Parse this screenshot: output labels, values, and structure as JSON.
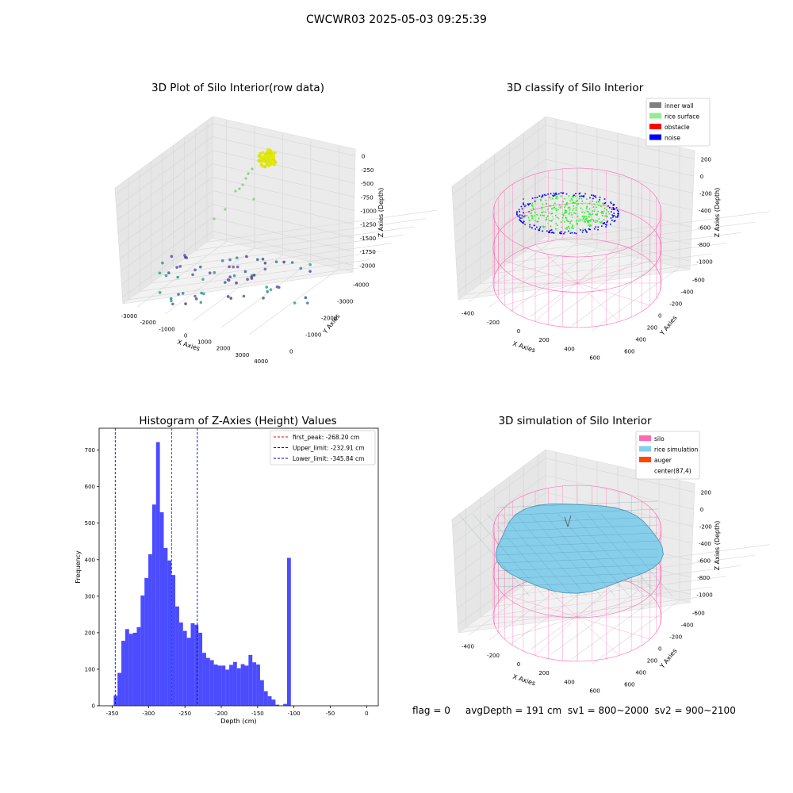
{
  "suptitle": "CWCWR03 2025-05-03 09:25:39",
  "status_text": "flag = 0     avgDepth = 191 cm  sv1 = 800~2000  sv2 = 900~2100",
  "colors": {
    "hist_bar": "#0000ff",
    "first_peak": "#ff0000",
    "limits": "#0000cc",
    "inner_wall": "#808080",
    "rice_surface": "#90ee90",
    "obstacle": "#ff0000",
    "noise": "#0000ff",
    "silo": "#ff69b4",
    "rice_simulation": "#87ceeb",
    "auger": "#ff4500"
  },
  "chart_data": [
    {
      "type": "scatter",
      "projection": "3d",
      "title": "3D Plot of Silo Interior(row data)",
      "xlabel": "X Axies",
      "ylabel": "Y Axies",
      "zlabel": "Z Axies (Depth)",
      "x_ticks": [
        "-3000",
        "-2000",
        "-1000",
        "0",
        "1000",
        "2000",
        "3000",
        "4000"
      ],
      "y_ticks": [
        "-4000",
        "-3000",
        "-2000",
        "-1000",
        "0"
      ],
      "z_ticks": [
        "0",
        "-250",
        "-500",
        "-750",
        "-1000",
        "-1250",
        "-1500",
        "-1750",
        "-2000"
      ],
      "grid": true
    },
    {
      "type": "scatter",
      "projection": "3d",
      "title": "3D classify of Silo Interior",
      "xlabel": "X Axies",
      "ylabel": "Y Axies",
      "zlabel": "Z Axies (Depth)",
      "x_ticks": [
        "-400",
        "-200",
        "0",
        "200",
        "400",
        "600"
      ],
      "y_ticks": [
        "-600",
        "-400",
        "-200",
        "0",
        "200",
        "400",
        "600"
      ],
      "z_ticks": [
        "200",
        "0",
        "-200",
        "-400",
        "-600",
        "-800",
        "-1000"
      ],
      "legend": [
        "inner wall",
        "rice surface",
        "obstacle",
        "noise"
      ],
      "legend_loc": "upper right",
      "grid": true
    },
    {
      "type": "bar",
      "title": "Histogram of Z-Axies (Height) Values",
      "xlabel": "Depth (cm)",
      "ylabel": "Frequency",
      "xlim": [
        -368,
        16
      ],
      "ylim": [
        0,
        760
      ],
      "x_ticks": [
        -350,
        -300,
        -250,
        -200,
        -150,
        -100,
        -50,
        0
      ],
      "y_ticks": [
        0,
        100,
        200,
        300,
        400,
        500,
        600,
        700
      ],
      "bin_start": -348,
      "bin_width": 5.3,
      "values": [
        28,
        90,
        178,
        210,
        197,
        200,
        215,
        302,
        350,
        415,
        551,
        722,
        530,
        432,
        398,
        358,
        272,
        228,
        205,
        186,
        226,
        222,
        200,
        145,
        131,
        125,
        113,
        110,
        110,
        99,
        112,
        120,
        103,
        114,
        110,
        139,
        119,
        113,
        70,
        40,
        26,
        17,
        3,
        0,
        5,
        405
      ],
      "vlines": [
        {
          "label": "first_peak: -268.20 cm",
          "x": -268.2,
          "style": "dashed",
          "color": "red"
        },
        {
          "label": "Upper_limit: -232.91 cm",
          "x": -232.91,
          "style": "dashed",
          "color": "blue"
        },
        {
          "label": "Lower_limit: -345.84 cm",
          "x": -345.84,
          "style": "dashed",
          "color": "blue"
        }
      ],
      "legend_loc": "upper right"
    },
    {
      "type": "surface",
      "projection": "3d",
      "title": "3D simulation of Silo Interior",
      "xlabel": "X Axies",
      "ylabel": "Y Axies",
      "zlabel": "Z Axies (Depth)",
      "x_ticks": [
        "-400",
        "-200",
        "0",
        "200",
        "400",
        "600"
      ],
      "y_ticks": [
        "-600",
        "-400",
        "-200",
        "0",
        "200",
        "400",
        "600"
      ],
      "z_ticks": [
        "200",
        "0",
        "-200",
        "-400",
        "-600",
        "-800",
        "-1000"
      ],
      "legend": [
        "silo",
        "rice simulation",
        "auger",
        "center(87,4)"
      ],
      "legend_loc": "upper right",
      "grid": true
    }
  ]
}
